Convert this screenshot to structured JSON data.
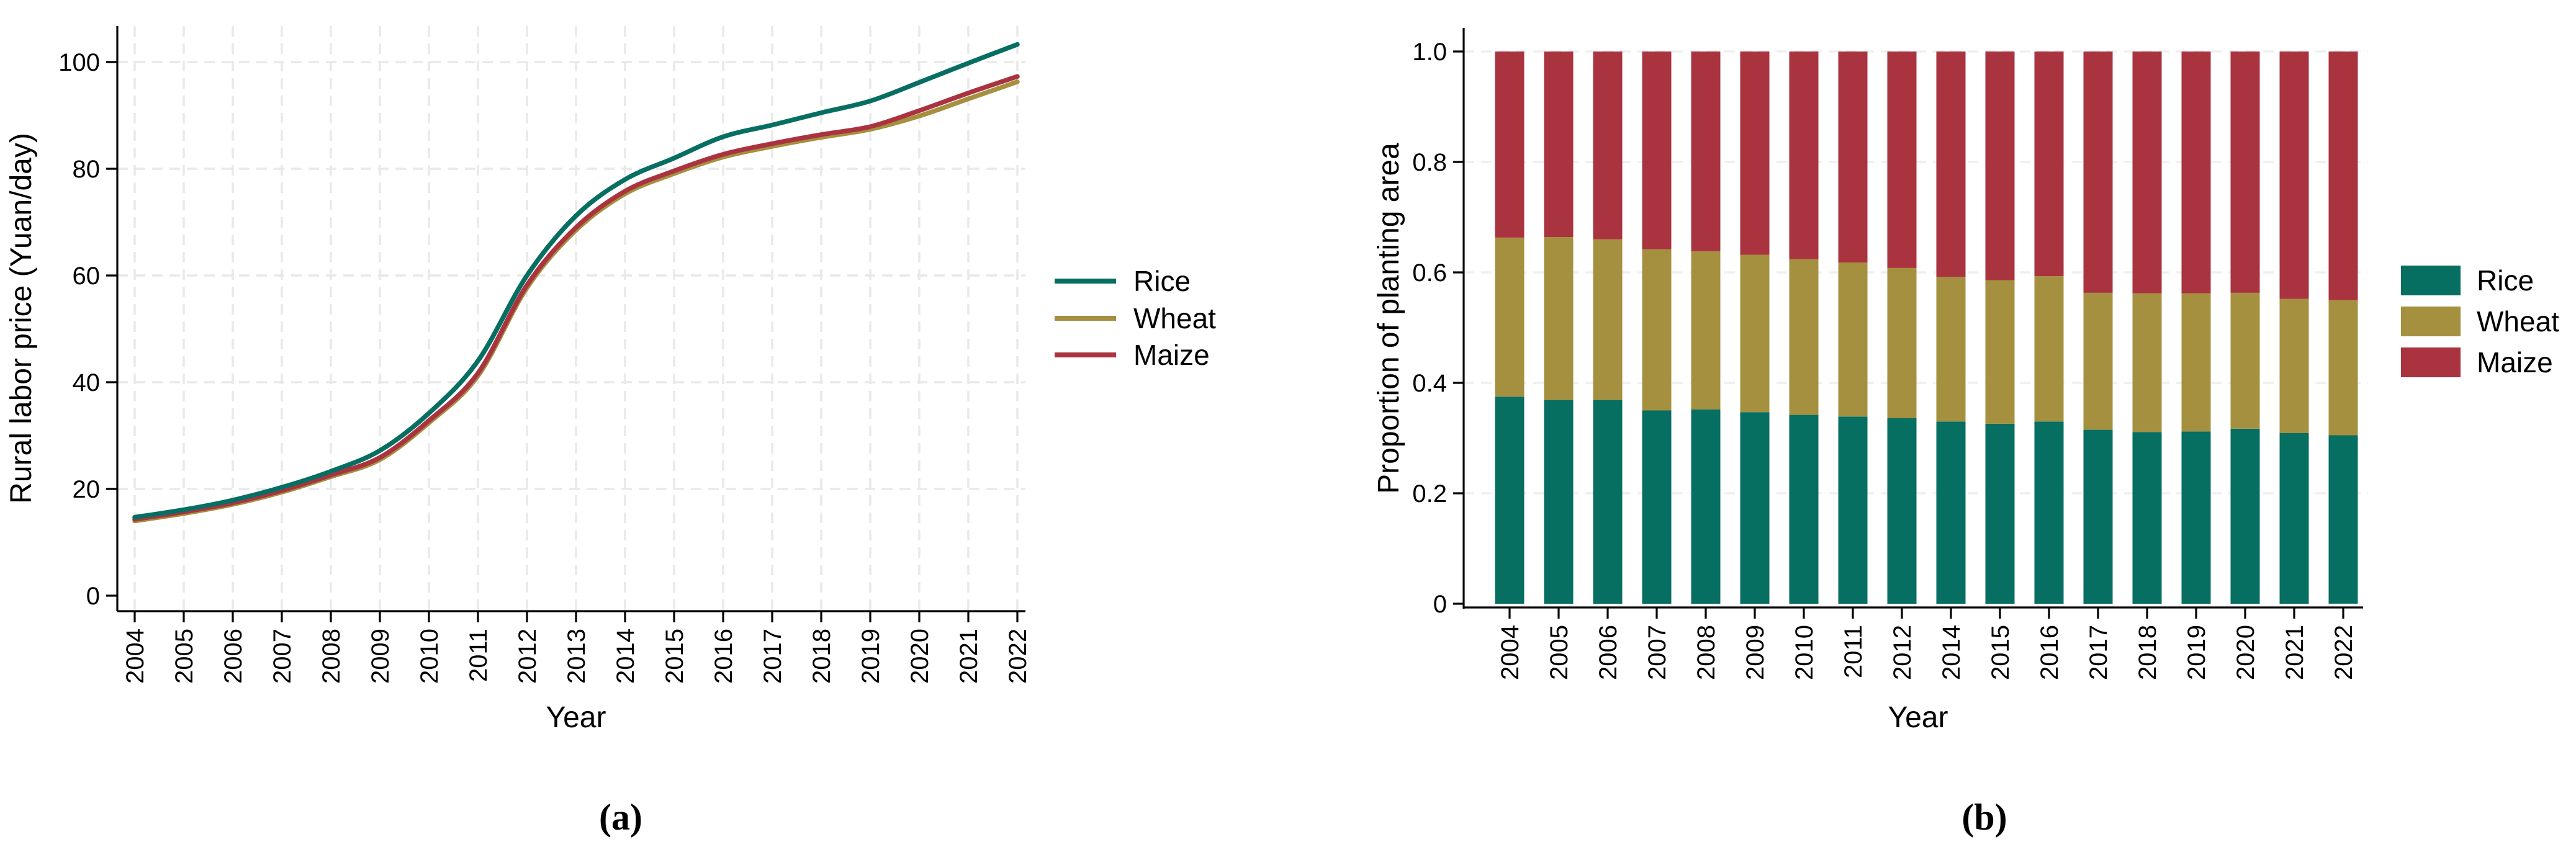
{
  "page": {
    "background": "#ffffff"
  },
  "colors": {
    "rice": "#076e62",
    "wheat": "#a5903f",
    "maize": "#aa3340",
    "grid_a": "#e9e9e9",
    "grid_b": "#efefef",
    "axis": "#000000",
    "text": "#000000"
  },
  "panels": {
    "a": {
      "caption": "(a)",
      "xlabel": "Year",
      "ylabel": "Rural labor price (Yuan/day)"
    },
    "b": {
      "caption": "(b)",
      "xlabel": "Year",
      "ylabel": "Proportion of planting area"
    }
  },
  "chart_data": [
    {
      "type": "line",
      "panel": "a",
      "title": "",
      "xlabel": "Year",
      "ylabel": "Rural labor price (Yuan/day)",
      "x": [
        2004,
        2005,
        2006,
        2007,
        2008,
        2009,
        2010,
        2011,
        2012,
        2013,
        2014,
        2015,
        2016,
        2017,
        2018,
        2019,
        2020,
        2021,
        2022
      ],
      "ylim": [
        0,
        106
      ],
      "yticks": [
        0,
        20,
        40,
        60,
        80,
        100
      ],
      "ytick_labels": [
        "0",
        "20",
        "40",
        "60",
        "80",
        "100"
      ],
      "grid": true,
      "legend_position": "right",
      "series": [
        {
          "name": "Rice",
          "color": "#076e62",
          "values": [
            14.7,
            16.1,
            17.9,
            20.3,
            23.3,
            27.2,
            34.2,
            44.0,
            60.0,
            71.2,
            78.0,
            82.0,
            86.0,
            88.2,
            90.5,
            92.7,
            96.2,
            99.8,
            103.3
          ]
        },
        {
          "name": "Wheat",
          "color": "#a5903f",
          "values": [
            14.0,
            15.4,
            17.1,
            19.4,
            22.3,
            25.5,
            32.4,
            41.2,
            57.7,
            68.5,
            75.3,
            79.1,
            82.2,
            84.2,
            85.9,
            87.4,
            89.9,
            93.1,
            96.3
          ]
        },
        {
          "name": "Maize",
          "color": "#aa3340",
          "values": [
            14.3,
            15.7,
            17.4,
            19.7,
            22.6,
            25.9,
            32.8,
            41.7,
            58.2,
            69.0,
            75.8,
            79.6,
            82.7,
            84.7,
            86.4,
            87.9,
            90.9,
            94.2,
            97.3
          ]
        }
      ]
    },
    {
      "type": "bar",
      "stacked": true,
      "panel": "b",
      "title": "",
      "xlabel": "Year",
      "ylabel": "Proportion of planting area",
      "categories": [
        2004,
        2005,
        2006,
        2007,
        2008,
        2009,
        2010,
        2011,
        2012,
        2014,
        2015,
        2016,
        2017,
        2018,
        2019,
        2020,
        2021,
        2022
      ],
      "ylim": [
        0,
        1.0
      ],
      "yticks": [
        0,
        0.2,
        0.4,
        0.6,
        0.8,
        1.0
      ],
      "ytick_labels": [
        "0",
        "0.2",
        "0.4",
        "0.6",
        "0.8",
        "1.0"
      ],
      "grid": true,
      "legend_position": "right",
      "series": [
        {
          "name": "Rice",
          "color": "#076e62",
          "values": [
            0.375,
            0.369,
            0.369,
            0.35,
            0.352,
            0.347,
            0.342,
            0.339,
            0.336,
            0.33,
            0.326,
            0.33,
            0.315,
            0.311,
            0.312,
            0.317,
            0.309,
            0.305
          ]
        },
        {
          "name": "Wheat",
          "color": "#a5903f",
          "values": [
            0.288,
            0.295,
            0.291,
            0.292,
            0.286,
            0.285,
            0.282,
            0.279,
            0.272,
            0.262,
            0.26,
            0.263,
            0.248,
            0.251,
            0.25,
            0.246,
            0.243,
            0.245
          ]
        },
        {
          "name": "Maize",
          "color": "#aa3340",
          "values": [
            0.337,
            0.336,
            0.34,
            0.358,
            0.362,
            0.368,
            0.376,
            0.382,
            0.392,
            0.408,
            0.414,
            0.407,
            0.437,
            0.438,
            0.438,
            0.437,
            0.448,
            0.45
          ]
        }
      ]
    }
  ]
}
